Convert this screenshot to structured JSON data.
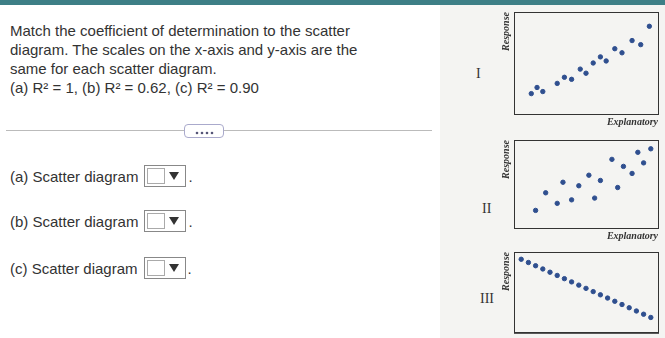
{
  "question": {
    "lines": [
      "Match the coefficient of determination to the scatter",
      "diagram. The scales on the x-axis and y-axis are the",
      "same for each scatter diagram.",
      "(a) R² = 1, (b) R² = 0.62, (c) R² = 0.90"
    ]
  },
  "answers": [
    {
      "label": "(a) Scatter diagram",
      "suffix": "."
    },
    {
      "label": "(b) Scatter diagram",
      "suffix": "."
    },
    {
      "label": "(c) Scatter diagram",
      "suffix": "."
    }
  ],
  "chart_data": [
    {
      "type": "scatter",
      "title": "I",
      "x_label": "Explanatory",
      "y_label": "Response",
      "color": "#2f4f8f",
      "grid": false,
      "tick_labels": false,
      "xlim": [
        0,
        10
      ],
      "ylim": [
        0,
        10
      ],
      "x": [
        1.2,
        1.6,
        2.0,
        3.0,
        3.5,
        4.0,
        4.6,
        5.0,
        5.5,
        6.0,
        6.4,
        7.0,
        7.5,
        8.2,
        8.8,
        9.4
      ],
      "values": [
        2.0,
        2.6,
        2.2,
        3.0,
        3.6,
        3.4,
        4.4,
        4.0,
        5.0,
        5.6,
        5.2,
        6.4,
        6.0,
        7.2,
        6.8,
        8.6
      ]
    },
    {
      "type": "scatter",
      "title": "II",
      "x_label": "Explanatory",
      "y_label": "Response",
      "color": "#2f4f8f",
      "grid": false,
      "tick_labels": false,
      "xlim": [
        0,
        10
      ],
      "ylim": [
        0,
        10
      ],
      "x": [
        1.5,
        2.2,
        3.0,
        3.4,
        4.0,
        4.5,
        5.2,
        5.6,
        6.0,
        6.8,
        7.2,
        7.6,
        8.2,
        8.6,
        9.0,
        9.5
      ],
      "values": [
        2.0,
        4.0,
        2.8,
        5.2,
        3.2,
        4.8,
        6.0,
        3.4,
        5.4,
        7.8,
        4.6,
        7.0,
        6.2,
        8.6,
        7.4,
        9.0
      ]
    },
    {
      "type": "scatter",
      "title": "III",
      "y_label": "Response",
      "color": "#2f4f8f",
      "grid": false,
      "tick_labels": false,
      "xlim": [
        0,
        10
      ],
      "ylim": [
        0,
        10
      ],
      "x": [
        0.5,
        1.0,
        1.5,
        2.0,
        2.5,
        3.0,
        3.5,
        4.0,
        4.5,
        5.0,
        5.5,
        6.0,
        6.5,
        7.0,
        7.5,
        8.0,
        8.5,
        9.0,
        9.5
      ],
      "values": [
        9.1,
        8.7,
        8.3,
        7.9,
        7.5,
        7.1,
        6.7,
        6.3,
        5.9,
        5.5,
        5.1,
        4.7,
        4.3,
        3.9,
        3.5,
        3.1,
        2.7,
        2.3,
        1.9
      ]
    }
  ]
}
